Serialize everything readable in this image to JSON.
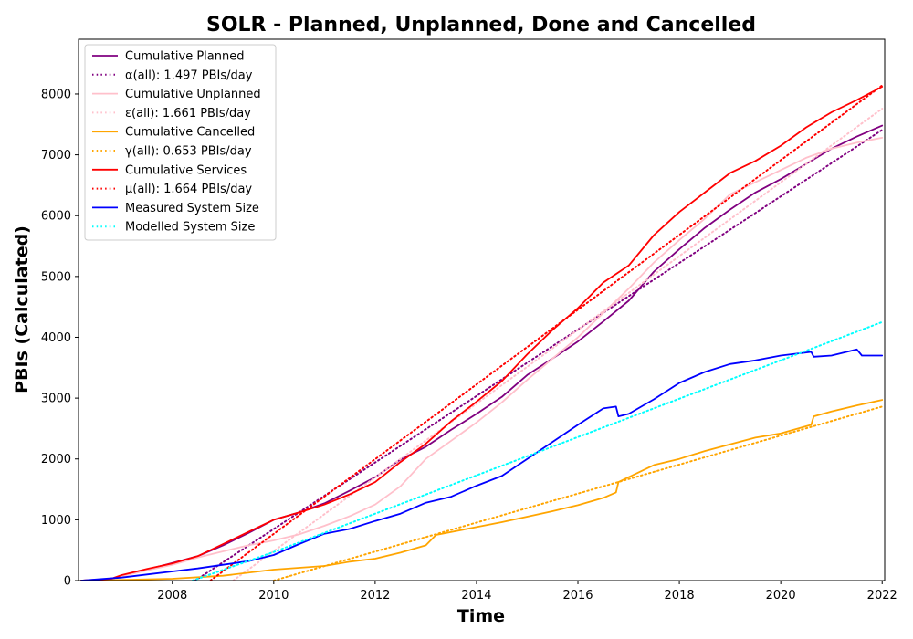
{
  "chart_data": {
    "type": "line",
    "title": "SOLR - Planned, Unplanned, Done  and Cancelled",
    "xlabel": "Time",
    "ylabel": "PBIs (Calculated)",
    "xlim": [
      2006.15,
      2022.05
    ],
    "ylim": [
      0,
      8900
    ],
    "x_ticks": [
      2008,
      2010,
      2012,
      2014,
      2016,
      2018,
      2020,
      2022
    ],
    "y_ticks": [
      0,
      1000,
      2000,
      3000,
      4000,
      5000,
      6000,
      7000,
      8000
    ],
    "grid": false,
    "legend_position": "top-left",
    "series": [
      {
        "name": "Cumulative Planned",
        "style": "solid",
        "color": "#800080",
        "points": [
          [
            2006.2,
            0
          ],
          [
            2006.8,
            25
          ],
          [
            2007.0,
            80
          ],
          [
            2007.5,
            180
          ],
          [
            2008.0,
            290
          ],
          [
            2008.5,
            400
          ],
          [
            2009.0,
            580
          ],
          [
            2009.5,
            780
          ],
          [
            2010.0,
            1000
          ],
          [
            2010.5,
            1120
          ],
          [
            2011.0,
            1270
          ],
          [
            2011.5,
            1480
          ],
          [
            2012.0,
            1700
          ],
          [
            2012.5,
            1990
          ],
          [
            2013.0,
            2200
          ],
          [
            2013.5,
            2480
          ],
          [
            2014.0,
            2740
          ],
          [
            2014.5,
            3020
          ],
          [
            2015.0,
            3380
          ],
          [
            2015.5,
            3650
          ],
          [
            2016.0,
            3930
          ],
          [
            2016.5,
            4260
          ],
          [
            2017.0,
            4600
          ],
          [
            2017.5,
            5080
          ],
          [
            2018.0,
            5450
          ],
          [
            2018.5,
            5800
          ],
          [
            2019.0,
            6100
          ],
          [
            2019.5,
            6380
          ],
          [
            2020.0,
            6600
          ],
          [
            2020.5,
            6850
          ],
          [
            2021.0,
            7100
          ],
          [
            2021.5,
            7300
          ],
          [
            2022.0,
            7480
          ]
        ]
      },
      {
        "name": "α(all): 1.497 PBIs/day",
        "style": "dotted",
        "color": "#800080",
        "points": [
          [
            2008.45,
            0
          ],
          [
            2022.0,
            7410
          ]
        ]
      },
      {
        "name": "Cumulative Unplanned",
        "style": "solid",
        "color": "#ffc0cb",
        "points": [
          [
            2006.2,
            0
          ],
          [
            2006.8,
            25
          ],
          [
            2007.0,
            70
          ],
          [
            2007.5,
            170
          ],
          [
            2008.0,
            260
          ],
          [
            2008.5,
            380
          ],
          [
            2009.0,
            480
          ],
          [
            2009.5,
            580
          ],
          [
            2010.0,
            660
          ],
          [
            2010.5,
            760
          ],
          [
            2011.0,
            900
          ],
          [
            2011.5,
            1060
          ],
          [
            2012.0,
            1250
          ],
          [
            2012.5,
            1550
          ],
          [
            2013.0,
            2000
          ],
          [
            2013.5,
            2300
          ],
          [
            2014.0,
            2600
          ],
          [
            2014.5,
            2930
          ],
          [
            2015.0,
            3300
          ],
          [
            2015.5,
            3650
          ],
          [
            2016.0,
            4000
          ],
          [
            2016.5,
            4400
          ],
          [
            2017.0,
            4800
          ],
          [
            2017.5,
            5230
          ],
          [
            2018.0,
            5600
          ],
          [
            2018.5,
            5950
          ],
          [
            2019.0,
            6350
          ],
          [
            2019.5,
            6550
          ],
          [
            2020.0,
            6750
          ],
          [
            2020.5,
            6950
          ],
          [
            2021.0,
            7100
          ],
          [
            2021.5,
            7200
          ],
          [
            2022.0,
            7280
          ]
        ]
      },
      {
        "name": "ε(all): 1.661 PBIs/day",
        "style": "dotted",
        "color": "#ffc0cb",
        "points": [
          [
            2009.2,
            0
          ],
          [
            2022.0,
            7760
          ]
        ]
      },
      {
        "name": "Cumulative Cancelled",
        "style": "solid",
        "color": "#ffa500",
        "points": [
          [
            2006.2,
            0
          ],
          [
            2007.0,
            10
          ],
          [
            2008.0,
            30
          ],
          [
            2009.0,
            80
          ],
          [
            2010.0,
            180
          ],
          [
            2011.0,
            240
          ],
          [
            2011.5,
            310
          ],
          [
            2012.0,
            360
          ],
          [
            2012.5,
            460
          ],
          [
            2013.0,
            580
          ],
          [
            2013.2,
            750
          ],
          [
            2014.0,
            880
          ],
          [
            2014.5,
            960
          ],
          [
            2015.0,
            1050
          ],
          [
            2015.5,
            1140
          ],
          [
            2016.0,
            1240
          ],
          [
            2016.5,
            1360
          ],
          [
            2016.75,
            1450
          ],
          [
            2016.8,
            1620
          ],
          [
            2017.0,
            1700
          ],
          [
            2017.5,
            1900
          ],
          [
            2018.0,
            2000
          ],
          [
            2018.5,
            2130
          ],
          [
            2019.0,
            2240
          ],
          [
            2019.5,
            2350
          ],
          [
            2020.0,
            2420
          ],
          [
            2020.6,
            2560
          ],
          [
            2020.65,
            2700
          ],
          [
            2021.0,
            2780
          ],
          [
            2021.5,
            2880
          ],
          [
            2022.0,
            2970
          ]
        ]
      },
      {
        "name": "γ(all): 0.653 PBIs/day",
        "style": "dotted",
        "color": "#ffa500",
        "points": [
          [
            2010.0,
            0
          ],
          [
            2022.0,
            2860
          ]
        ]
      },
      {
        "name": "Cumulative Services",
        "style": "solid",
        "color": "#ff0000",
        "points": [
          [
            2006.2,
            0
          ],
          [
            2006.8,
            30
          ],
          [
            2007.0,
            90
          ],
          [
            2007.5,
            190
          ],
          [
            2008.0,
            280
          ],
          [
            2008.5,
            400
          ],
          [
            2009.0,
            600
          ],
          [
            2009.5,
            800
          ],
          [
            2010.0,
            1000
          ],
          [
            2010.5,
            1120
          ],
          [
            2011.0,
            1250
          ],
          [
            2011.5,
            1420
          ],
          [
            2012.0,
            1620
          ],
          [
            2012.5,
            1950
          ],
          [
            2013.0,
            2250
          ],
          [
            2013.5,
            2620
          ],
          [
            2014.0,
            2940
          ],
          [
            2014.5,
            3280
          ],
          [
            2015.0,
            3720
          ],
          [
            2015.5,
            4120
          ],
          [
            2016.0,
            4480
          ],
          [
            2016.5,
            4900
          ],
          [
            2017.0,
            5180
          ],
          [
            2017.5,
            5680
          ],
          [
            2018.0,
            6060
          ],
          [
            2018.5,
            6380
          ],
          [
            2019.0,
            6700
          ],
          [
            2019.5,
            6900
          ],
          [
            2020.0,
            7150
          ],
          [
            2020.5,
            7450
          ],
          [
            2021.0,
            7700
          ],
          [
            2021.5,
            7900
          ],
          [
            2022.0,
            8120
          ]
        ]
      },
      {
        "name": "μ(all): 1.664 PBIs/day",
        "style": "dotted",
        "color": "#ff0000",
        "points": [
          [
            2008.75,
            0
          ],
          [
            2022.0,
            8140
          ]
        ]
      },
      {
        "name": "Measured System Size",
        "style": "solid",
        "color": "#0000ff",
        "points": [
          [
            2006.2,
            0
          ],
          [
            2007.0,
            50
          ],
          [
            2007.5,
            100
          ],
          [
            2008.0,
            150
          ],
          [
            2008.5,
            200
          ],
          [
            2009.0,
            260
          ],
          [
            2009.5,
            320
          ],
          [
            2010.0,
            420
          ],
          [
            2010.5,
            600
          ],
          [
            2011.0,
            770
          ],
          [
            2011.5,
            850
          ],
          [
            2012.0,
            980
          ],
          [
            2012.5,
            1100
          ],
          [
            2013.0,
            1280
          ],
          [
            2013.5,
            1380
          ],
          [
            2014.0,
            1560
          ],
          [
            2014.5,
            1720
          ],
          [
            2015.0,
            2000
          ],
          [
            2015.5,
            2280
          ],
          [
            2016.0,
            2560
          ],
          [
            2016.5,
            2830
          ],
          [
            2016.75,
            2860
          ],
          [
            2016.8,
            2700
          ],
          [
            2017.0,
            2740
          ],
          [
            2017.5,
            2980
          ],
          [
            2018.0,
            3250
          ],
          [
            2018.5,
            3430
          ],
          [
            2019.0,
            3560
          ],
          [
            2019.5,
            3620
          ],
          [
            2020.0,
            3700
          ],
          [
            2020.6,
            3760
          ],
          [
            2020.65,
            3680
          ],
          [
            2021.0,
            3700
          ],
          [
            2021.5,
            3800
          ],
          [
            2021.6,
            3700
          ],
          [
            2022.0,
            3700
          ]
        ]
      },
      {
        "name": "Modelled System Size",
        "style": "dotted",
        "color": "#00ffff",
        "points": [
          [
            2008.4,
            0
          ],
          [
            2010.0,
            470
          ],
          [
            2022.0,
            4250
          ]
        ]
      }
    ]
  }
}
